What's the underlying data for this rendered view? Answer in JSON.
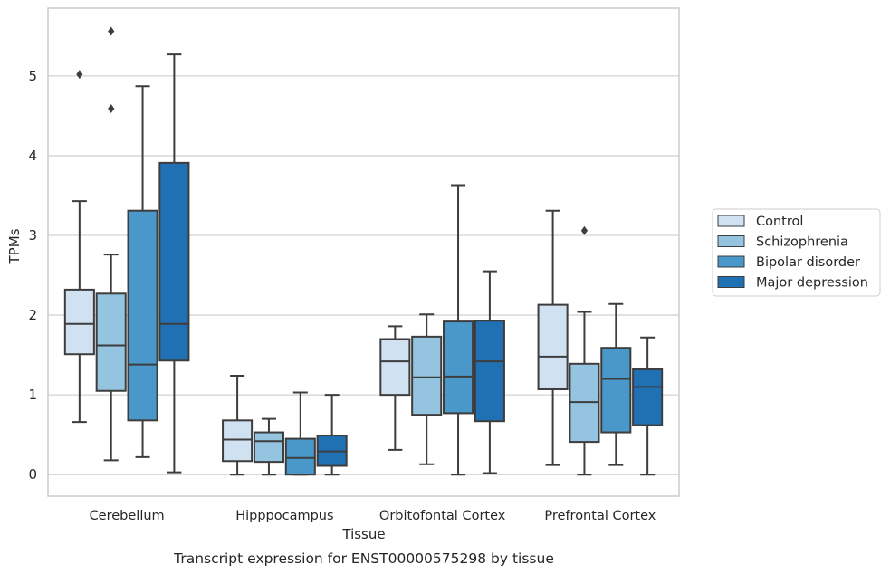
{
  "chart_data": {
    "type": "box",
    "xlabel": "Tissue",
    "ylabel": "TPMs",
    "caption": "Transcript expression for ENST00000575298 by tissue",
    "ylim": [
      -0.27,
      5.85
    ],
    "yticks": [
      0,
      1,
      2,
      3,
      4,
      5
    ],
    "grid": "horizontal",
    "legend_position": "right",
    "categories": [
      "Cerebellum",
      "Hipppocampus",
      "Orbitofontal Cortex",
      "Prefrontal Cortex"
    ],
    "series": [
      {
        "name": "Control",
        "color": "#d0e1f2",
        "boxes": [
          {
            "whislo": 0.66,
            "q1": 1.51,
            "med": 1.89,
            "q3": 2.32,
            "whishi": 3.43,
            "fliers": [
              5.02
            ]
          },
          {
            "whislo": 0.0,
            "q1": 0.17,
            "med": 0.44,
            "q3": 0.68,
            "whishi": 1.24,
            "fliers": []
          },
          {
            "whislo": 0.31,
            "q1": 1.0,
            "med": 1.42,
            "q3": 1.7,
            "whishi": 1.86,
            "fliers": []
          },
          {
            "whislo": 0.12,
            "q1": 1.07,
            "med": 1.48,
            "q3": 2.13,
            "whishi": 3.31,
            "fliers": []
          }
        ]
      },
      {
        "name": "Schizophrenia",
        "color": "#94c4df",
        "boxes": [
          {
            "whislo": 0.18,
            "q1": 1.05,
            "med": 1.62,
            "q3": 2.27,
            "whishi": 2.76,
            "fliers": [
              4.59,
              5.56
            ]
          },
          {
            "whislo": 0.0,
            "q1": 0.16,
            "med": 0.42,
            "q3": 0.53,
            "whishi": 0.7,
            "fliers": []
          },
          {
            "whislo": 0.13,
            "q1": 0.75,
            "med": 1.22,
            "q3": 1.73,
            "whishi": 2.01,
            "fliers": []
          },
          {
            "whislo": 0.0,
            "q1": 0.41,
            "med": 0.91,
            "q3": 1.39,
            "whishi": 2.04,
            "fliers": [
              3.06
            ]
          }
        ]
      },
      {
        "name": "Bipolar disorder",
        "color": "#4a98c9",
        "boxes": [
          {
            "whislo": 0.22,
            "q1": 0.68,
            "med": 1.38,
            "q3": 3.31,
            "whishi": 4.87,
            "fliers": []
          },
          {
            "whislo": 0.0,
            "q1": 0.0,
            "med": 0.21,
            "q3": 0.45,
            "whishi": 1.03,
            "fliers": []
          },
          {
            "whislo": 0.0,
            "q1": 0.77,
            "med": 1.23,
            "q3": 1.92,
            "whishi": 3.63,
            "fliers": []
          },
          {
            "whislo": 0.12,
            "q1": 0.53,
            "med": 1.2,
            "q3": 1.59,
            "whishi": 2.14,
            "fliers": []
          }
        ]
      },
      {
        "name": "Major depression",
        "color": "#2070b4",
        "boxes": [
          {
            "whislo": 0.03,
            "q1": 1.43,
            "med": 1.89,
            "q3": 3.91,
            "whishi": 5.27,
            "fliers": []
          },
          {
            "whislo": 0.0,
            "q1": 0.11,
            "med": 0.29,
            "q3": 0.49,
            "whishi": 1.0,
            "fliers": []
          },
          {
            "whislo": 0.02,
            "q1": 0.67,
            "med": 1.42,
            "q3": 1.93,
            "whishi": 2.55,
            "fliers": []
          },
          {
            "whislo": 0.0,
            "q1": 0.62,
            "med": 1.1,
            "q3": 1.32,
            "whishi": 1.72,
            "fliers": []
          }
        ]
      }
    ]
  }
}
